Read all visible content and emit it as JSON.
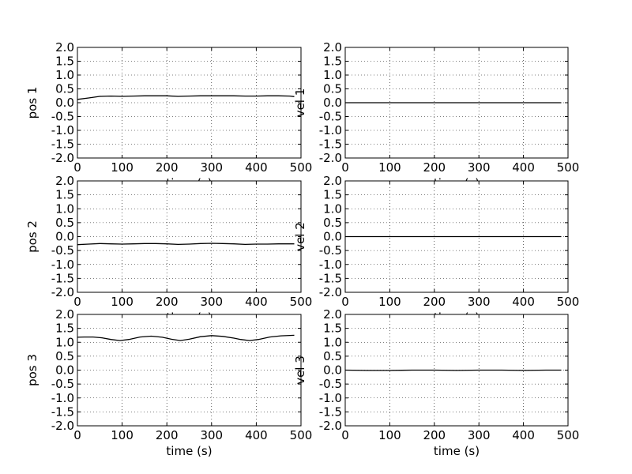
{
  "chart_data": [
    {
      "type": "line",
      "xlabel": "time (s)",
      "ylabel": "pos 1",
      "xlim": [
        0,
        500
      ],
      "ylim": [
        -2.0,
        2.0
      ],
      "xticks": [
        "0",
        "100",
        "200",
        "300",
        "400",
        "500"
      ],
      "yticks": [
        "2.0",
        "1.5",
        "1.0",
        "0.5",
        "0.0",
        "-0.5",
        "-1.0",
        "-1.5",
        "-2.0"
      ],
      "grid": true,
      "x": [
        0,
        25,
        50,
        75,
        100,
        125,
        150,
        175,
        200,
        225,
        250,
        275,
        300,
        325,
        350,
        375,
        400,
        425,
        450,
        475,
        485
      ],
      "y": [
        0.12,
        0.17,
        0.23,
        0.24,
        0.23,
        0.24,
        0.25,
        0.25,
        0.25,
        0.23,
        0.24,
        0.25,
        0.25,
        0.25,
        0.25,
        0.24,
        0.24,
        0.25,
        0.25,
        0.24,
        0.22
      ]
    },
    {
      "type": "line",
      "xlabel": "time (s)",
      "ylabel": "vel 1",
      "xlim": [
        0,
        500
      ],
      "ylim": [
        -2.0,
        2.0
      ],
      "xticks": [
        "0",
        "100",
        "200",
        "300",
        "400",
        "500"
      ],
      "yticks": [
        "2.0",
        "1.5",
        "1.0",
        "0.5",
        "0.0",
        "-0.5",
        "-1.0",
        "-1.5",
        "-2.0"
      ],
      "grid": true,
      "x": [
        0,
        100,
        200,
        300,
        400,
        485
      ],
      "y": [
        0.0,
        0.0,
        0.0,
        0.0,
        0.0,
        0.0
      ]
    },
    {
      "type": "line",
      "xlabel": "time (s)",
      "ylabel": "pos 2",
      "xlim": [
        0,
        500
      ],
      "ylim": [
        -2.0,
        2.0
      ],
      "xticks": [
        "0",
        "100",
        "200",
        "300",
        "400",
        "500"
      ],
      "yticks": [
        "2.0",
        "1.5",
        "1.0",
        "0.5",
        "0.0",
        "-0.5",
        "-1.0",
        "-1.5",
        "-2.0"
      ],
      "grid": true,
      "x": [
        0,
        25,
        50,
        75,
        100,
        125,
        150,
        175,
        200,
        225,
        250,
        275,
        300,
        325,
        350,
        375,
        400,
        425,
        450,
        475,
        485
      ],
      "y": [
        -0.29,
        -0.27,
        -0.25,
        -0.26,
        -0.27,
        -0.26,
        -0.25,
        -0.25,
        -0.26,
        -0.28,
        -0.27,
        -0.25,
        -0.24,
        -0.25,
        -0.26,
        -0.28,
        -0.27,
        -0.27,
        -0.26,
        -0.26,
        -0.26
      ]
    },
    {
      "type": "line",
      "xlabel": "time (s)",
      "ylabel": "vel 2",
      "xlim": [
        0,
        500
      ],
      "ylim": [
        -2.0,
        2.0
      ],
      "xticks": [
        "0",
        "100",
        "200",
        "300",
        "400",
        "500"
      ],
      "yticks": [
        "2.0",
        "1.5",
        "1.0",
        "0.5",
        "0.0",
        "-0.5",
        "-1.0",
        "-1.5",
        "-2.0"
      ],
      "grid": true,
      "x": [
        0,
        100,
        200,
        300,
        400,
        485
      ],
      "y": [
        0.0,
        0.0,
        0.0,
        0.0,
        0.0,
        0.0
      ]
    },
    {
      "type": "line",
      "xlabel": "time (s)",
      "ylabel": "pos 3",
      "xlim": [
        0,
        500
      ],
      "ylim": [
        -2.0,
        2.0
      ],
      "xticks": [
        "0",
        "100",
        "200",
        "300",
        "400",
        "500"
      ],
      "yticks": [
        "2.0",
        "1.5",
        "1.0",
        "0.5",
        "0.0",
        "-0.5",
        "-1.0",
        "-1.5",
        "-2.0"
      ],
      "grid": true,
      "x": [
        0,
        15,
        35,
        55,
        75,
        95,
        115,
        140,
        165,
        190,
        210,
        230,
        250,
        275,
        300,
        325,
        350,
        365,
        385,
        405,
        430,
        455,
        485
      ],
      "y": [
        1.18,
        1.19,
        1.19,
        1.16,
        1.1,
        1.06,
        1.1,
        1.19,
        1.22,
        1.18,
        1.11,
        1.06,
        1.11,
        1.2,
        1.24,
        1.21,
        1.15,
        1.1,
        1.06,
        1.1,
        1.19,
        1.23,
        1.25
      ]
    },
    {
      "type": "line",
      "xlabel": "time (s)",
      "ylabel": "vel 3",
      "xlim": [
        0,
        500
      ],
      "ylim": [
        -2.0,
        2.0
      ],
      "xticks": [
        "0",
        "100",
        "200",
        "300",
        "400",
        "500"
      ],
      "yticks": [
        "2.0",
        "1.5",
        "1.0",
        "0.5",
        "0.0",
        "-0.5",
        "-1.0",
        "-1.5",
        "-2.0"
      ],
      "grid": true,
      "x": [
        0,
        50,
        100,
        150,
        200,
        250,
        300,
        350,
        400,
        450,
        485
      ],
      "y": [
        0.0,
        -0.01,
        -0.01,
        0.0,
        0.0,
        -0.01,
        0.0,
        0.0,
        -0.01,
        0.0,
        0.0
      ]
    }
  ]
}
